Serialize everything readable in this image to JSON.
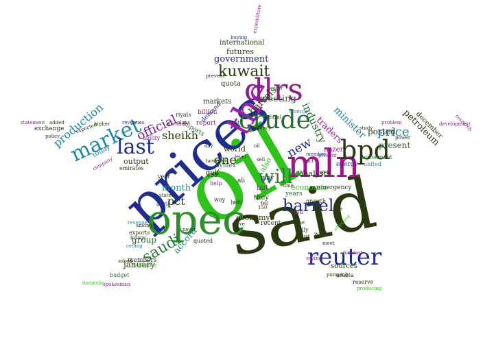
{
  "cloud": {
    "words": [
      {
        "text": "oil",
        "color": "#2ec21a"
      },
      {
        "text": "said",
        "color": "#2a3811"
      },
      {
        "text": "prices",
        "color": "#1f2d8c"
      },
      {
        "text": "opec",
        "color": "#2d8f2a"
      },
      {
        "text": "mln",
        "color": "#a0168a"
      },
      {
        "text": "the",
        "color": "#9a20a8"
      },
      {
        "text": "dlrs",
        "color": "#8c1f8c"
      },
      {
        "text": "bpd",
        "color": "#2a3811"
      },
      {
        "text": "reuter",
        "color": "#1f2d8c"
      },
      {
        "text": "crude",
        "color": "#2a6a35"
      },
      {
        "text": "market",
        "color": "#1f87a0"
      },
      {
        "text": "last",
        "color": "#1f2d8c"
      },
      {
        "text": "saudi",
        "color": "#2d7a3a"
      },
      {
        "text": "will",
        "color": "#2d7a3a"
      },
      {
        "text": "barrel",
        "color": "#1f2d8c"
      },
      {
        "text": "kuwait",
        "color": "#2a3811"
      },
      {
        "text": "official",
        "color": "#7a1f8c"
      },
      {
        "text": "one",
        "color": "#2a3811"
      },
      {
        "text": "new",
        "color": "#1f2d8c"
      },
      {
        "text": "price",
        "color": "#1f87a0"
      },
      {
        "text": "pct",
        "color": "#2a3811"
      },
      {
        "text": "government",
        "color": "#1f2d8c"
      },
      {
        "text": "production",
        "color": "#1f87a0"
      },
      {
        "text": "sheikh",
        "color": "#2a3811"
      },
      {
        "text": "industry",
        "color": "#2a6a35"
      },
      {
        "text": "minister",
        "color": "#1f87a0"
      },
      {
        "text": "barrels",
        "color": "#2a3811"
      },
      {
        "text": "meeting",
        "color": "#2a6a35"
      },
      {
        "text": "petroleum",
        "color": "#2a3811"
      },
      {
        "text": "traders",
        "color": "#8c1f8c"
      },
      {
        "text": "posted",
        "color": "#2a3811"
      },
      {
        "text": "present",
        "color": "#2a6a35"
      },
      {
        "text": "december",
        "color": "#2a3811"
      },
      {
        "text": "month",
        "color": "#1f87a0"
      },
      {
        "text": "accord",
        "color": "#1f87a0"
      },
      {
        "text": "group",
        "color": "#2a6a35"
      },
      {
        "text": "january",
        "color": "#2a3811"
      },
      {
        "text": "economy",
        "color": "#2a3811"
      },
      {
        "text": "economic",
        "color": "#2ec21a"
      },
      {
        "text": "analysts",
        "color": "#2a3811"
      },
      {
        "text": "also",
        "color": "#2ec21a"
      },
      {
        "text": "world",
        "color": "#2a3811"
      },
      {
        "text": "output",
        "color": "#2a3811"
      },
      {
        "text": "today",
        "color": "#1f87a0"
      },
      {
        "text": "futures",
        "color": "#2a3811"
      },
      {
        "text": "international",
        "color": "#2a3811"
      },
      {
        "text": "quota",
        "color": "#2a3811"
      },
      {
        "text": "markets",
        "color": "#2a3811"
      },
      {
        "text": "demand",
        "color": "#1f2d8c"
      },
      {
        "text": "report",
        "color": "#8c1f8c"
      },
      {
        "text": "billion",
        "color": "#8c1f8c"
      },
      {
        "text": "imports",
        "color": "#2a6a35"
      },
      {
        "text": "exchange",
        "color": "#2a3811"
      },
      {
        "text": "sources",
        "color": "#2a3811"
      },
      {
        "text": "members",
        "color": "#2a3811"
      },
      {
        "text": "gulf",
        "color": "#2a3811"
      },
      {
        "text": "they",
        "color": "#2a3811"
      },
      {
        "text": "but",
        "color": "#8c1f8c"
      },
      {
        "text": "may",
        "color": "#1f2d8c"
      },
      {
        "text": "says",
        "color": "#2ec21a"
      },
      {
        "text": "ali",
        "color": "#2a3811"
      },
      {
        "text": "nazer",
        "color": "#8c1f8c"
      },
      {
        "text": "energy",
        "color": "#1f2d8c"
      },
      {
        "text": "nymex",
        "color": "#2a6a35"
      },
      {
        "text": "years",
        "color": "#2a6a35"
      },
      {
        "text": "recent",
        "color": "#2a3811"
      },
      {
        "text": "arabia",
        "color": "#2a3811"
      },
      {
        "text": "reserve",
        "color": "#2a3811"
      },
      {
        "text": "emergency",
        "color": "#2a3811"
      },
      {
        "text": "budget",
        "color": "#2a6a35"
      },
      {
        "text": "exports",
        "color": "#2a3811"
      },
      {
        "text": "emirates",
        "color": "#2a3811"
      },
      {
        "text": "agreement",
        "color": "#2a6a35"
      },
      {
        "text": "united",
        "color": "#1f87a0"
      },
      {
        "text": "growth",
        "color": "#2a3811"
      },
      {
        "text": "daily",
        "color": "#2a3811"
      },
      {
        "text": "week",
        "color": "#2a3811"
      },
      {
        "text": "help",
        "color": "#8c1f8c"
      },
      {
        "text": "way",
        "color": "#2a3811"
      },
      {
        "text": "year",
        "color": "#2a3811"
      },
      {
        "text": "april",
        "color": "#1f2d8c"
      },
      {
        "text": "quoted",
        "color": "#2a3811"
      },
      {
        "text": "riyals",
        "color": "#2a3811"
      },
      {
        "text": "ability",
        "color": "#8c1f8c"
      },
      {
        "text": "higher",
        "color": "#2a3811"
      },
      {
        "text": "added",
        "color": "#2a3811"
      },
      {
        "text": "policy",
        "color": "#2a3811"
      },
      {
        "text": "expected",
        "color": "#2a3811"
      },
      {
        "text": "plans",
        "color": "#2a3811"
      },
      {
        "text": "agency",
        "color": "#2a3811"
      },
      {
        "text": "pumping",
        "color": "#2a3811"
      },
      {
        "text": "producing",
        "color": "#2ec21a"
      },
      {
        "text": "158",
        "color": "#2a3811"
      },
      {
        "text": "150",
        "color": "#2a3811"
      },
      {
        "text": "states",
        "color": "#2a3811"
      },
      {
        "text": "among",
        "color": "#2a3811"
      },
      {
        "text": "company",
        "color": "#8c1f8c"
      },
      {
        "text": "asked",
        "color": "#2a3811"
      },
      {
        "text": "yesterday",
        "color": "#2ec21a"
      },
      {
        "text": "revenue",
        "color": "#1f87a0"
      },
      {
        "text": "brings",
        "color": "#2a3811"
      },
      {
        "text": "ceiling",
        "color": "#1f87a0"
      },
      {
        "text": "must",
        "color": "#2a3811"
      },
      {
        "text": "research",
        "color": "#8c1f8c"
      },
      {
        "text": "problem",
        "color": "#8c1f8c"
      },
      {
        "text": "study",
        "color": "#2a3811"
      },
      {
        "text": "power",
        "color": "#2a3811"
      },
      {
        "text": "development",
        "color": "#8c1f8c"
      },
      {
        "text": "increase",
        "color": "#8c1f8c"
      },
      {
        "text": "revenues",
        "color": "#1f2d8c"
      },
      {
        "text": "statement",
        "color": "#8c1f8c"
      },
      {
        "text": "effective",
        "color": "#2ec21a"
      },
      {
        "text": "meet",
        "color": "#2a3811"
      },
      {
        "text": "buying",
        "color": "#1f2d8c"
      },
      {
        "text": "control",
        "color": "#1f87a0"
      },
      {
        "text": "present",
        "color": "#8c1f8c"
      },
      {
        "text": "prevent",
        "color": "#2a3811"
      },
      {
        "text": "water",
        "color": "#2a6a35"
      },
      {
        "text": "never",
        "color": "#2a3811"
      },
      {
        "text": "cut",
        "color": "#2a3811"
      },
      {
        "text": "day",
        "color": "#2a3811"
      },
      {
        "text": "fell",
        "color": "#2a3811"
      },
      {
        "text": "official",
        "color": "#2a3811"
      },
      {
        "text": "member",
        "color": "#1f2d8c"
      },
      {
        "text": "sell",
        "color": "#2a3811"
      },
      {
        "text": "set",
        "color": "#2a3811"
      },
      {
        "text": "give",
        "color": "#2a3811"
      },
      {
        "text": "level",
        "color": "#2a3811"
      },
      {
        "text": "spokesman",
        "color": "#8c1f8c"
      },
      {
        "text": "expenditure",
        "color": "#8c1f8c"
      },
      {
        "text": "domestic",
        "color": "#2ec21a"
      },
      {
        "text": "forecast",
        "color": "#8c1f8c"
      },
      {
        "text": "saying",
        "color": "#8c1f8c"
      },
      {
        "text": "rise",
        "color": "#2a3811"
      },
      {
        "text": "however",
        "color": "#2a3811"
      },
      {
        "text": "spot",
        "color": "#2a3811"
      },
      {
        "text": "close",
        "color": "#2a3811"
      },
      {
        "text": "time",
        "color": "#2a3811"
      },
      {
        "text": "move",
        "color": "#2a3811"
      },
      {
        "text": "held",
        "color": "#2a6a35"
      },
      {
        "text": "held",
        "color": "#8c1f8c"
      },
      {
        "text": "oil",
        "color": "#2a3811"
      },
      {
        "text": "pct",
        "color": "#2a3811"
      }
    ]
  }
}
